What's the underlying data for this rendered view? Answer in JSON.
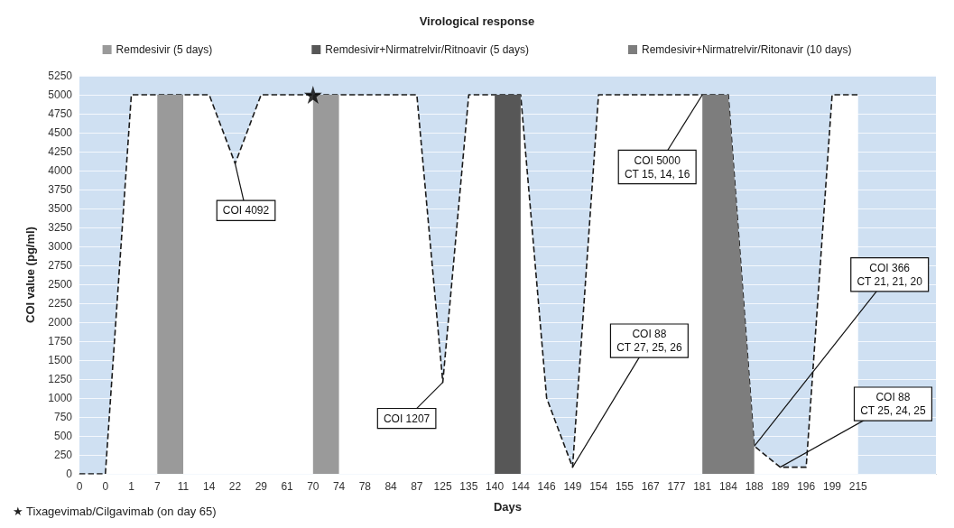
{
  "chart_data": {
    "type": "line",
    "title": "Virological response",
    "xlabel": "Days",
    "ylabel": "COI value (pg/ml)",
    "categories": [
      "0",
      "0",
      "1",
      "7",
      "11",
      "14",
      "22",
      "29",
      "61",
      "70",
      "74",
      "78",
      "84",
      "87",
      "125",
      "135",
      "140",
      "144",
      "146",
      "149",
      "154",
      "155",
      "167",
      "177",
      "181",
      "184",
      "188",
      "189",
      "196",
      "199",
      "215",
      null,
      null,
      null
    ],
    "ylim": [
      0,
      5250
    ],
    "yticks": [
      0,
      250,
      500,
      750,
      1000,
      1250,
      1500,
      1750,
      2000,
      2250,
      2500,
      2750,
      3000,
      3250,
      3500,
      3750,
      4000,
      4250,
      4500,
      4750,
      5000,
      5250
    ],
    "grid": "y",
    "legend": "top",
    "bands": [
      {
        "axis": "y",
        "from": 0,
        "to": 5250,
        "color": "#cfe0f2"
      }
    ],
    "line_style": "dashed",
    "marker": "none",
    "series": [
      {
        "type": "line",
        "color": "#1a1a1a",
        "values": [
          0,
          0,
          5000,
          5000,
          5000,
          5000,
          4092,
          5000,
          5000,
          5000,
          5000,
          5000,
          5000,
          5000,
          1207,
          5000,
          5000,
          5000,
          1000,
          88,
          5000,
          5000,
          5000,
          5000,
          5000,
          5000,
          366,
          88,
          88,
          5000,
          5000,
          null,
          null,
          null
        ]
      },
      {
        "type": "area",
        "name": "Remdesivir (5 days)",
        "color": "#9a9a9a",
        "values": [
          null,
          null,
          null,
          5000,
          5000,
          null,
          null,
          null,
          null,
          5000,
          5000,
          null,
          null,
          null,
          null,
          null,
          null,
          null,
          null,
          null,
          null,
          null,
          null,
          null,
          null,
          null,
          null,
          null,
          null,
          null,
          null,
          null,
          null,
          null
        ]
      },
      {
        "type": "area",
        "name": "Remdesivir+Nirmatrelvir/Ritnoavir (5 days)",
        "color": "#575757",
        "values": [
          null,
          null,
          null,
          null,
          null,
          null,
          null,
          null,
          null,
          null,
          null,
          null,
          null,
          null,
          null,
          null,
          5000,
          5000,
          null,
          null,
          null,
          null,
          null,
          null,
          null,
          null,
          null,
          null,
          null,
          null,
          null,
          null,
          null,
          null
        ]
      },
      {
        "type": "area",
        "name": "Remdesivir+Nirmatrelvir/Ritonavir (10 days)",
        "color": "#7d7d7d",
        "values": [
          null,
          null,
          null,
          null,
          null,
          null,
          null,
          null,
          null,
          null,
          null,
          null,
          null,
          null,
          null,
          null,
          null,
          null,
          null,
          null,
          null,
          null,
          null,
          null,
          5000,
          5000,
          366,
          null,
          null,
          null,
          null,
          null,
          null,
          null
        ]
      },
      {
        "type": "scatter",
        "color": "#000000",
        "marker": "star",
        "x": [
          "70"
        ],
        "values": [
          5000
        ]
      }
    ],
    "annotations": [
      "★ Tixagevimab/Cilgavimab (on day 65)",
      {
        "text": "COI 4092",
        "x": "22",
        "y": 4092
      },
      {
        "text": "COI 1207",
        "x": "125",
        "y": 1207
      },
      {
        "text": "COI 5000\nCT 15, 14, 16",
        "x": "181",
        "y": 5000
      },
      {
        "text": "COI 88\nCT 27, 25, 26",
        "x": "149",
        "y": 88
      },
      {
        "text": "COI 366\nCT 21, 21, 20",
        "x": "188",
        "y": 366
      },
      {
        "text": "COI 88\nCT 25, 24, 25",
        "x": "189",
        "y": 88
      }
    ]
  }
}
